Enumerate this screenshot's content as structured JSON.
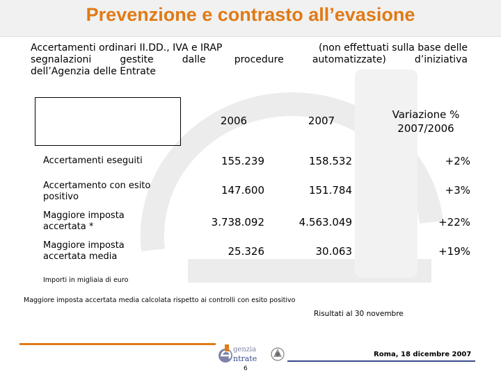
{
  "title": "Prevenzione e contrasto all’evasione",
  "intro": {
    "line1_a": "Accertamenti ordinari II.DD., IVA e IRAP",
    "line1_b": "(non effettuati sulla base delle",
    "line2_words": [
      "segnalazioni",
      "gestite",
      "dalle",
      "procedure",
      "automatizzate)",
      "d’iniziativa"
    ],
    "line3": "dell’Agenzia delle Entrate"
  },
  "table": {
    "headers": [
      "2006",
      "2007",
      "Variazione %",
      "2007/2006"
    ],
    "rows": [
      {
        "label": "Accertamenti eseguiti",
        "v2006": "155.239",
        "v2007": "158.532",
        "var": "+2%"
      },
      {
        "label": "Accertamento con esito positivo",
        "v2006": "147.600",
        "v2007": "151.784",
        "var": "+3%"
      },
      {
        "label": "Maggiore imposta accertata *",
        "v2006": "3.738.092",
        "v2007": "4.563.049",
        "var": "+22%"
      },
      {
        "label": "Maggiore imposta accertata media",
        "v2006": "25.326",
        "v2007": "30.063",
        "var": "+19%"
      }
    ]
  },
  "notes": {
    "note1": "Importi in migliaia di euro",
    "note2": "Maggiore imposta accertata media calcolata rispetto ai controlli con esito positivo",
    "note3": "Risultati al 30 novembre"
  },
  "footer": {
    "logo_text_1": "genzia",
    "logo_text_2": "ntrate",
    "date": "Roma, 18 dicembre 2007",
    "page": "6"
  },
  "colors": {
    "accent": "#e07a16",
    "logo_blue": "#3a4a8a"
  }
}
